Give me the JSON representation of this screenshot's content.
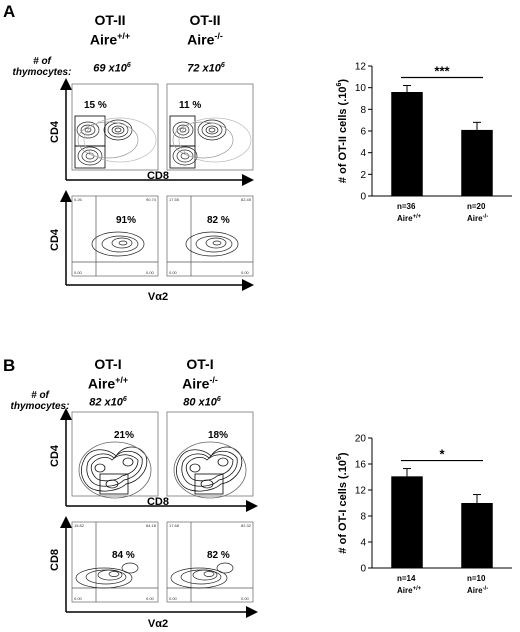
{
  "panelA": {
    "letter": "A",
    "columns": [
      {
        "line1": "OT-II",
        "line2": "Aire",
        "sup": "+/+",
        "thymocytes": "69 x10",
        "thy_exp": "6"
      },
      {
        "line1": "OT-II",
        "line2": "Aire",
        "sup": "-/-",
        "thymocytes": "72 x10",
        "thy_exp": "6"
      }
    ],
    "thymocytes_label": [
      "# of",
      "thymocytes:"
    ],
    "flow_top": {
      "y_label": "CD4",
      "x_label": "CD8",
      "pcts": [
        "15 %",
        "11 %"
      ]
    },
    "flow_bottom": {
      "y_label": "CD4",
      "x_label": "Vα2",
      "pcts": [
        "91%",
        "82 %"
      ],
      "quad_corner_values": [
        [
          "0.26",
          "90.74",
          "0.00",
          "0.00"
        ],
        [
          "17.55",
          "82.45",
          "0.00",
          "0.00"
        ]
      ]
    }
  },
  "panelB": {
    "letter": "B",
    "columns": [
      {
        "line1": "OT-I",
        "line2": "Aire",
        "sup": "+/+",
        "thymocytes": "82 x10",
        "thy_exp": "6"
      },
      {
        "line1": "OT-I",
        "line2": "Aire",
        "sup": "-/-",
        "thymocytes": "80 x10",
        "thy_exp": "6"
      }
    ],
    "thymocytes_label": [
      "# of",
      "thymocytes:"
    ],
    "flow_top": {
      "y_label": "CD4",
      "x_label": "CD8",
      "pcts": [
        "21%",
        "18%"
      ]
    },
    "flow_bottom": {
      "y_label": "CD8",
      "x_label": "Vα2",
      "pcts": [
        "84 %",
        "82 %"
      ],
      "quad_corner_values": [
        [
          "15.82",
          "84.18",
          "0.00",
          "0.00"
        ],
        [
          "17.68",
          "82.32",
          "0.00",
          "0.00"
        ]
      ]
    }
  },
  "chart_data": [
    {
      "type": "bar",
      "categories": [
        "Aire+/+",
        "Aire-/-"
      ],
      "cat_main": [
        "Aire",
        "Aire"
      ],
      "cat_sup": [
        "+/+",
        "-/-"
      ],
      "n_labels": [
        "n=36",
        "n=20"
      ],
      "values": [
        9.6,
        6.1
      ],
      "errors": [
        0.6,
        0.7
      ],
      "ylim": [
        0,
        12
      ],
      "yticks": [
        0,
        2,
        4,
        6,
        8,
        10,
        12
      ],
      "ylabel": "# of OT-II cells (.10",
      "ylabel_exp": "6",
      "ylabel_close": ")",
      "significance": "***",
      "bar_color": "#000000"
    },
    {
      "type": "bar",
      "categories": [
        "Aire+/+",
        "Aire-/-"
      ],
      "cat_main": [
        "Aire",
        "Aire"
      ],
      "cat_sup": [
        "+/+",
        "-/-"
      ],
      "n_labels": [
        "n=14",
        "n=10"
      ],
      "values": [
        14.1,
        10.0
      ],
      "errors": [
        1.2,
        1.3
      ],
      "ylim": [
        0,
        20
      ],
      "yticks": [
        0,
        4,
        8,
        12,
        16,
        20
      ],
      "ylabel": "# of OT-I cells (.10",
      "ylabel_exp": "6",
      "ylabel_close": ")",
      "significance": "*",
      "bar_color": "#000000"
    }
  ]
}
